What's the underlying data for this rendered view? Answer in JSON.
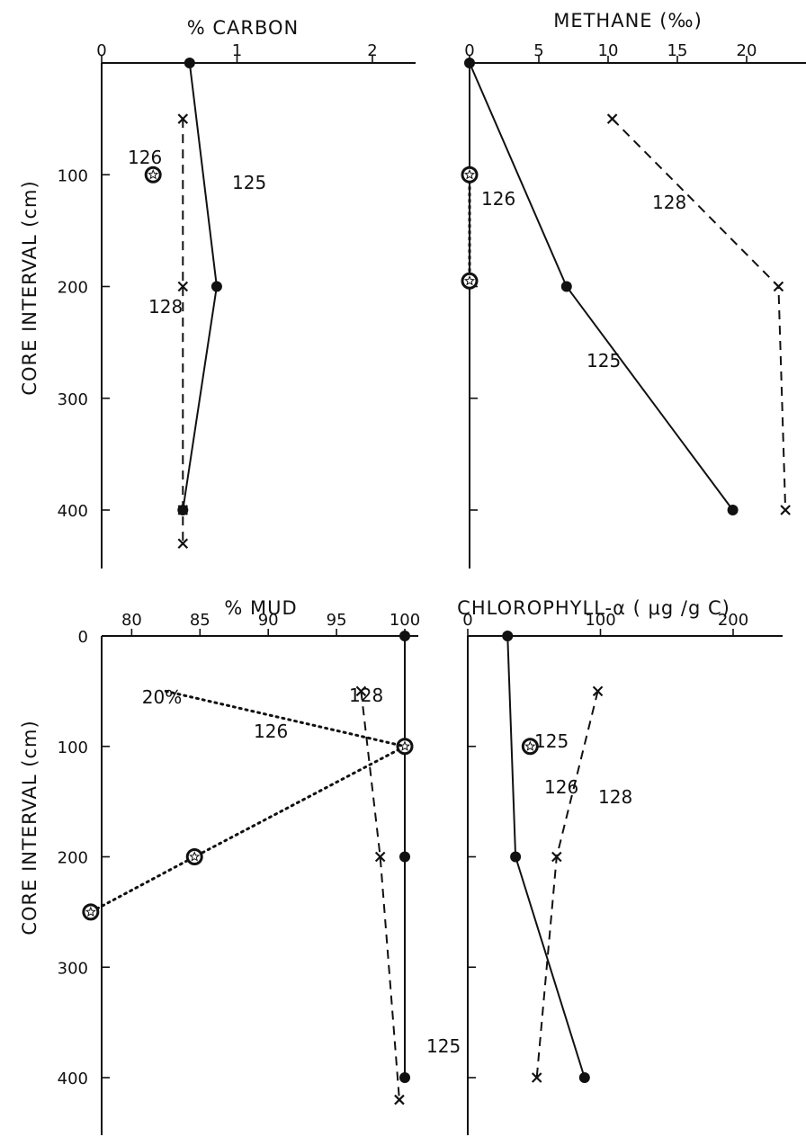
{
  "figure": {
    "y_axis_label": "CORE INTERVAL (cm)"
  },
  "chart_data": [
    {
      "id": "carbon",
      "type": "line",
      "title": "% CARBON",
      "xlabel": "% CARBON",
      "ylabel": "CORE INTERVAL (cm)",
      "xlim": [
        0,
        2.3
      ],
      "ylim": [
        0,
        450
      ],
      "x_ticks": [
        0,
        1,
        2
      ],
      "x_tick_labels": [
        "0",
        "1",
        "2"
      ],
      "y_ticks": [
        100,
        200,
        300,
        400
      ],
      "y_tick_labels": [
        "100",
        "200",
        "300",
        "400"
      ],
      "series": [
        {
          "name": "125",
          "style": "solid",
          "marker": "dot",
          "x": [
            0.65,
            0.85,
            0.6
          ],
          "y": [
            0,
            200,
            400
          ]
        },
        {
          "name": "128",
          "style": "dashed",
          "marker": "x",
          "x": [
            0.6,
            0.6,
            0.6,
            0.6
          ],
          "y": [
            50,
            200,
            400,
            430
          ]
        },
        {
          "name": "126",
          "style": "none",
          "marker": "star",
          "x": [
            0.38
          ],
          "y": [
            100
          ]
        }
      ]
    },
    {
      "id": "methane",
      "type": "line",
      "title": "METHANE (‰)",
      "xlabel": "METHANE (‰)",
      "ylabel": "CORE INTERVAL (cm)",
      "xlim": [
        0,
        23
      ],
      "ylim": [
        0,
        450
      ],
      "x_ticks": [
        0,
        5,
        10,
        15,
        20
      ],
      "x_tick_labels": [
        "0",
        "5",
        "10",
        "15",
        "20"
      ],
      "y_ticks": [
        100,
        200,
        300,
        400
      ],
      "series": [
        {
          "name": "125",
          "style": "solid",
          "marker": "dot",
          "x": [
            0,
            7,
            19
          ],
          "y": [
            0,
            200,
            400
          ]
        },
        {
          "name": "128",
          "style": "dashed",
          "marker": "x",
          "x": [
            10.3,
            22.3,
            22.8
          ],
          "y": [
            50,
            200,
            400
          ]
        },
        {
          "name": "126",
          "style": "dotted",
          "marker": "star",
          "x": [
            0,
            0
          ],
          "y": [
            100,
            195
          ]
        }
      ]
    },
    {
      "id": "mud",
      "type": "line",
      "title": "% MUD",
      "xlabel": "% MUD",
      "ylabel": "CORE INTERVAL (cm)",
      "xlim": [
        77,
        101
      ],
      "ylim": [
        0,
        420
      ],
      "x_ticks": [
        80,
        85,
        90,
        95,
        100
      ],
      "x_tick_labels": [
        "80",
        "85",
        "90",
        "95",
        "100"
      ],
      "y_ticks": [
        0,
        100,
        200,
        300,
        400
      ],
      "y_tick_labels": [
        "0",
        "100",
        "200",
        "300",
        "400"
      ],
      "annotation": "20%",
      "series": [
        {
          "name": "125",
          "style": "solid",
          "marker": "dot",
          "x": [
            100,
            100,
            100,
            100
          ],
          "y": [
            0,
            100,
            200,
            400
          ]
        },
        {
          "name": "128",
          "style": "dashed",
          "marker": "x",
          "x": [
            96.8,
            98.2,
            99.6
          ],
          "y": [
            50,
            200,
            420
          ]
        },
        {
          "name": "126",
          "style": "dotted",
          "marker": "star",
          "x": [
            100,
            84.6,
            77
          ],
          "y": [
            100,
            200,
            250
          ]
        },
        {
          "name": "126-upper",
          "style": "dotted",
          "marker": "none",
          "x": [
            82.5,
            100
          ],
          "y": [
            50,
            100
          ]
        }
      ]
    },
    {
      "id": "chlorophyll",
      "type": "line",
      "title": "CHLOROPHYLL-α ( μg /g C)",
      "xlabel": "CHLOROPHYLL-α ( μg /g C)",
      "ylabel": "CORE INTERVAL (cm)",
      "xlim": [
        0,
        230
      ],
      "ylim": [
        0,
        420
      ],
      "x_ticks": [
        0,
        100,
        200
      ],
      "x_tick_labels": [
        "0",
        "100",
        "200"
      ],
      "y_ticks": [
        100,
        200,
        300,
        400
      ],
      "series": [
        {
          "name": "125",
          "style": "solid",
          "marker": "dot",
          "x": [
            30,
            36,
            88
          ],
          "y": [
            0,
            200,
            400
          ]
        },
        {
          "name": "128",
          "style": "dashed",
          "marker": "x",
          "x": [
            98,
            67,
            52
          ],
          "y": [
            50,
            200,
            400
          ]
        },
        {
          "name": "126",
          "style": "none",
          "marker": "star",
          "x": [
            47
          ],
          "y": [
            100
          ]
        }
      ]
    }
  ]
}
